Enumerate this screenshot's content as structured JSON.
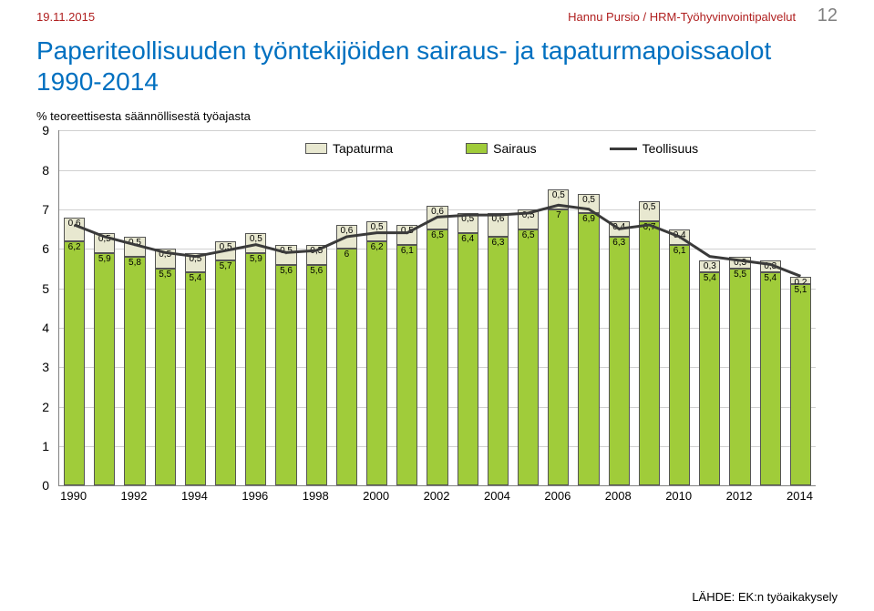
{
  "header": {
    "date": "19.11.2015",
    "author": "Hannu Pursio / HRM-Työhyvinvointipalvelut",
    "page_number": "12"
  },
  "title": "Paperiteollisuuden työntekijöiden sairaus- ja tapaturmapoissaolot 1990-2014",
  "subtitle": "% teoreettisesta säännöllisestä työajasta",
  "source": "LÄHDE: EK:n työaikakysely",
  "chart": {
    "type": "stacked-bar-with-line",
    "legend": {
      "tapaturma": "Tapaturma",
      "sairaus": "Sairaus",
      "teollisuus": "Teollisuus"
    },
    "colors": {
      "tapaturma_fill": "#e8e8d0",
      "sairaus_fill": "#a0cc3a",
      "teollisuus_line": "#3a3a3a",
      "grid": "#d0d0d0",
      "axis_text": "#000000",
      "title_color": "#0070c0",
      "header_color": "#b02020",
      "pagenum_color": "#808080"
    },
    "ylim": [
      0,
      9
    ],
    "ytick_step": 1,
    "x_tick_labels": [
      "1990",
      "",
      "1992",
      "",
      "1994",
      "",
      "1996",
      "",
      "1998",
      "",
      "2000",
      "",
      "2002",
      "",
      "2004",
      "",
      "2006",
      "",
      "2008",
      "",
      "2010",
      "",
      "2012",
      "",
      "2014"
    ],
    "bars": [
      {
        "sairaus": 6.2,
        "tapaturma": 0.6,
        "teollisuus": 6.6
      },
      {
        "sairaus": 5.9,
        "tapaturma": 0.5,
        "teollisuus": 6.3
      },
      {
        "sairaus": 5.8,
        "tapaturma": 0.5,
        "teollisuus": 6.1
      },
      {
        "sairaus": 5.5,
        "tapaturma": 0.5,
        "teollisuus": 5.9
      },
      {
        "sairaus": 5.4,
        "tapaturma": 0.5,
        "teollisuus": 5.8
      },
      {
        "sairaus": 5.7,
        "tapaturma": 0.5,
        "teollisuus": 5.95
      },
      {
        "sairaus": 5.9,
        "tapaturma": 0.5,
        "teollisuus": 6.1
      },
      {
        "sairaus": 5.6,
        "tapaturma": 0.5,
        "teollisuus": 5.9
      },
      {
        "sairaus": 5.6,
        "tapaturma": 0.5,
        "teollisuus": 5.95
      },
      {
        "sairaus": 6.0,
        "tapaturma": 0.6,
        "teollisuus": 6.3
      },
      {
        "sairaus": 6.2,
        "tapaturma": 0.5,
        "teollisuus": 6.4
      },
      {
        "sairaus": 6.1,
        "tapaturma": 0.5,
        "teollisuus": 6.4
      },
      {
        "sairaus": 6.5,
        "tapaturma": 0.6,
        "teollisuus": 6.8
      },
      {
        "sairaus": 6.4,
        "tapaturma": 0.5,
        "teollisuus": 6.85
      },
      {
        "sairaus": 6.3,
        "tapaturma": 0.6,
        "teollisuus": 6.85
      },
      {
        "sairaus": 6.5,
        "tapaturma": 0.5,
        "teollisuus": 6.9
      },
      {
        "sairaus": 7.0,
        "tapaturma": 0.5,
        "teollisuus": 7.1
      },
      {
        "sairaus": 6.9,
        "tapaturma": 0.5,
        "teollisuus": 7.0
      },
      {
        "sairaus": 6.3,
        "tapaturma": 0.4,
        "teollisuus": 6.5
      },
      {
        "sairaus": 6.7,
        "tapaturma": 0.5,
        "teollisuus": 6.6
      },
      {
        "sairaus": 6.1,
        "tapaturma": 0.4,
        "teollisuus": 6.3
      },
      {
        "sairaus": 5.4,
        "tapaturma": 0.3,
        "teollisuus": 5.8
      },
      {
        "sairaus": 5.5,
        "tapaturma": 0.3,
        "teollisuus": 5.7
      },
      {
        "sairaus": 5.4,
        "tapaturma": 0.3,
        "teollisuus": 5.6
      },
      {
        "sairaus": 5.1,
        "tapaturma": 0.2,
        "teollisuus": 5.3
      }
    ]
  }
}
